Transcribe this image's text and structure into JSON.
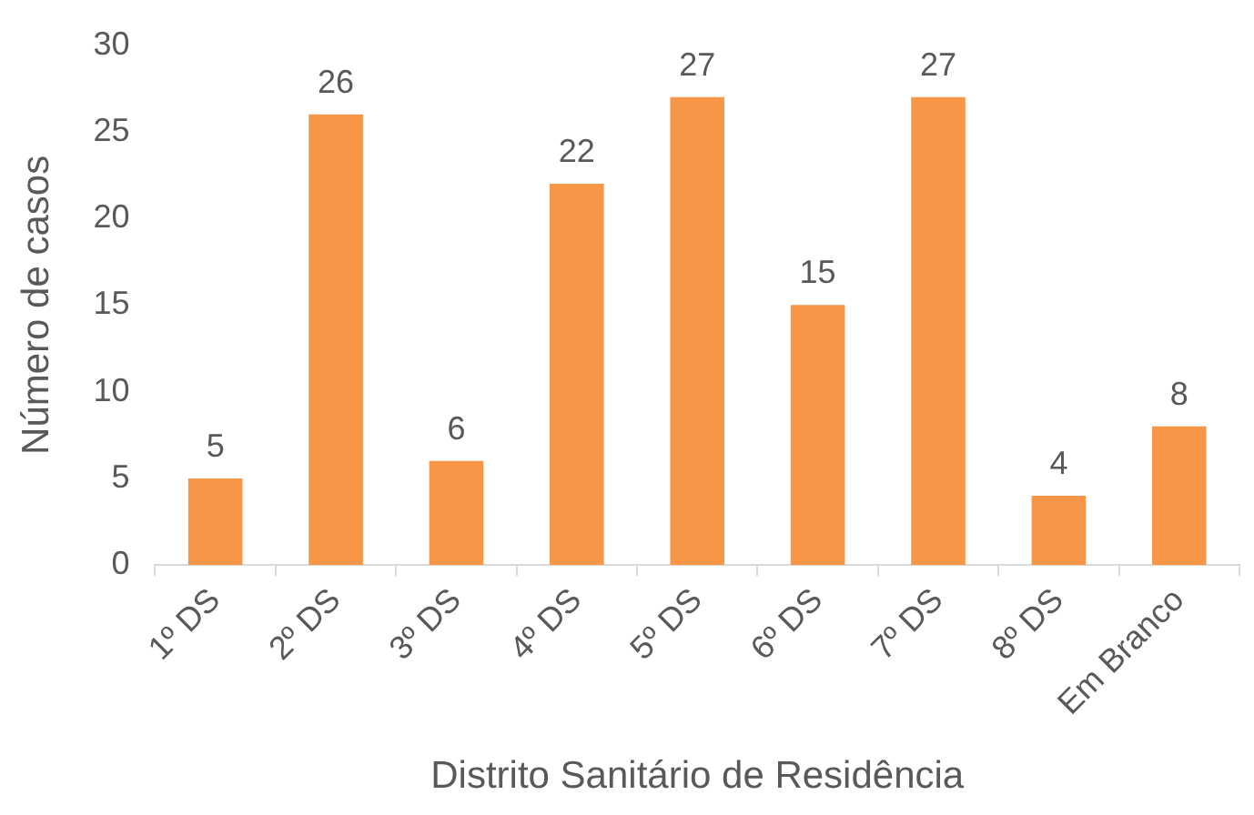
{
  "chart_data": {
    "type": "bar",
    "xlabel": "Distrito Sanitário de Residência",
    "ylabel": "Número de casos",
    "categories": [
      "1º DS",
      "2º DS",
      "3º DS",
      "4º DS",
      "5º DS",
      "6º DS",
      "7º DS",
      "8º DS",
      "Em Branco"
    ],
    "values": [
      5,
      26,
      6,
      22,
      27,
      15,
      27,
      4,
      8
    ],
    "color": "#f79646",
    "ylim": [
      0,
      30
    ],
    "yticks": [
      0,
      5,
      10,
      15,
      20,
      25,
      30
    ],
    "grid": false,
    "legend": false,
    "data_labels": true
  }
}
